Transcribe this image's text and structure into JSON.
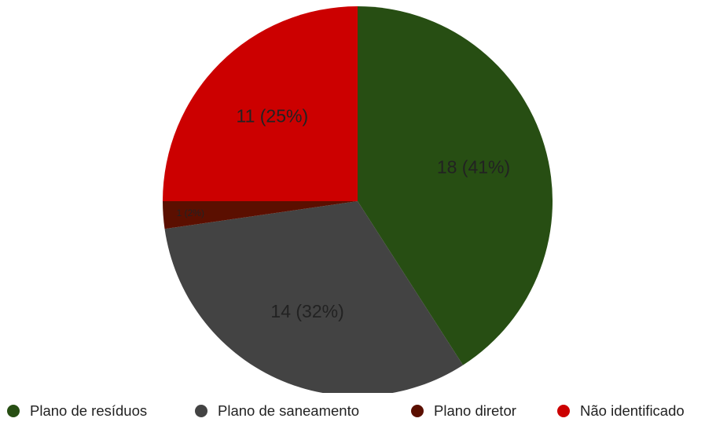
{
  "chart_data": {
    "type": "pie",
    "categories": [
      "Plano de resíduos",
      "Plano de saneamento",
      "Plano diretor",
      "Não identificado"
    ],
    "values": [
      18,
      14,
      1,
      11
    ],
    "percentages": [
      41,
      32,
      2,
      25
    ],
    "slice_labels": [
      "18 (41%)",
      "14 (32%)",
      "1 (2%)",
      "11 (25%)"
    ],
    "colors": [
      "#274e13",
      "#434343",
      "#5b0f00",
      "#cc0000"
    ],
    "label_colors": [
      "#222222",
      "#222222",
      "#222222",
      "#222222"
    ],
    "legend_position": "bottom"
  }
}
